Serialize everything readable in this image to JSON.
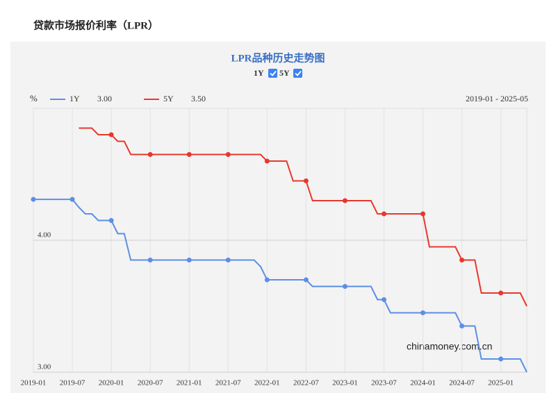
{
  "header": {
    "title": "贷款市场报价利率（LPR）"
  },
  "chart_data": {
    "type": "line",
    "title": "LPR品种历史走势图",
    "y_label": "%",
    "date_range": "2019-01 - 2025-05",
    "watermark": "chinamoney.com.cn",
    "x": [
      "2019-01",
      "2019-02",
      "2019-03",
      "2019-04",
      "2019-05",
      "2019-06",
      "2019-07",
      "2019-08",
      "2019-09",
      "2019-10",
      "2019-11",
      "2019-12",
      "2020-01",
      "2020-02",
      "2020-03",
      "2020-04",
      "2020-05",
      "2020-06",
      "2020-07",
      "2020-08",
      "2020-09",
      "2020-10",
      "2020-11",
      "2020-12",
      "2021-01",
      "2021-02",
      "2021-03",
      "2021-04",
      "2021-05",
      "2021-06",
      "2021-07",
      "2021-08",
      "2021-09",
      "2021-10",
      "2021-11",
      "2021-12",
      "2022-01",
      "2022-02",
      "2022-03",
      "2022-04",
      "2022-05",
      "2022-06",
      "2022-07",
      "2022-08",
      "2022-09",
      "2022-10",
      "2022-11",
      "2022-12",
      "2023-01",
      "2023-02",
      "2023-03",
      "2023-04",
      "2023-05",
      "2023-06",
      "2023-07",
      "2023-08",
      "2023-09",
      "2023-10",
      "2023-11",
      "2023-12",
      "2024-01",
      "2024-02",
      "2024-03",
      "2024-04",
      "2024-05",
      "2024-06",
      "2024-07",
      "2024-08",
      "2024-09",
      "2024-10",
      "2024-11",
      "2024-12",
      "2025-01",
      "2025-02",
      "2025-03",
      "2025-04",
      "2025-05"
    ],
    "series": [
      {
        "name": "1Y",
        "color": "#5b8ee6",
        "legend_value": "3.00",
        "values": [
          4.31,
          4.31,
          4.31,
          4.31,
          4.31,
          4.31,
          4.31,
          4.25,
          4.2,
          4.2,
          4.15,
          4.15,
          4.15,
          4.05,
          4.05,
          3.85,
          3.85,
          3.85,
          3.85,
          3.85,
          3.85,
          3.85,
          3.85,
          3.85,
          3.85,
          3.85,
          3.85,
          3.85,
          3.85,
          3.85,
          3.85,
          3.85,
          3.85,
          3.85,
          3.85,
          3.8,
          3.7,
          3.7,
          3.7,
          3.7,
          3.7,
          3.7,
          3.7,
          3.65,
          3.65,
          3.65,
          3.65,
          3.65,
          3.65,
          3.65,
          3.65,
          3.65,
          3.65,
          3.55,
          3.55,
          3.45,
          3.45,
          3.45,
          3.45,
          3.45,
          3.45,
          3.45,
          3.45,
          3.45,
          3.45,
          3.45,
          3.35,
          3.35,
          3.35,
          3.1,
          3.1,
          3.1,
          3.1,
          3.1,
          3.1,
          3.1,
          3.0
        ]
      },
      {
        "name": "5Y",
        "color": "#e8372c",
        "legend_value": "3.50",
        "values": [
          null,
          null,
          null,
          null,
          null,
          null,
          null,
          4.85,
          4.85,
          4.85,
          4.8,
          4.8,
          4.8,
          4.75,
          4.75,
          4.65,
          4.65,
          4.65,
          4.65,
          4.65,
          4.65,
          4.65,
          4.65,
          4.65,
          4.65,
          4.65,
          4.65,
          4.65,
          4.65,
          4.65,
          4.65,
          4.65,
          4.65,
          4.65,
          4.65,
          4.65,
          4.6,
          4.6,
          4.6,
          4.6,
          4.45,
          4.45,
          4.45,
          4.3,
          4.3,
          4.3,
          4.3,
          4.3,
          4.3,
          4.3,
          4.3,
          4.3,
          4.3,
          4.2,
          4.2,
          4.2,
          4.2,
          4.2,
          4.2,
          4.2,
          4.2,
          3.95,
          3.95,
          3.95,
          3.95,
          3.95,
          3.85,
          3.85,
          3.85,
          3.6,
          3.6,
          3.6,
          3.6,
          3.6,
          3.6,
          3.6,
          3.5
        ]
      }
    ],
    "xlim": [
      "2019-01",
      "2025-05"
    ],
    "xticks": [
      "2019-01",
      "2019-07",
      "2020-01",
      "2020-07",
      "2021-01",
      "2021-07",
      "2022-01",
      "2022-07",
      "2023-01",
      "2023-07",
      "2024-01",
      "2024-07",
      "2025-01"
    ],
    "ylim": [
      3,
      5
    ],
    "yticks": [
      {
        "value": 3,
        "label": "3.00"
      },
      {
        "value": 4,
        "label": "4.00"
      }
    ],
    "grid": true
  }
}
